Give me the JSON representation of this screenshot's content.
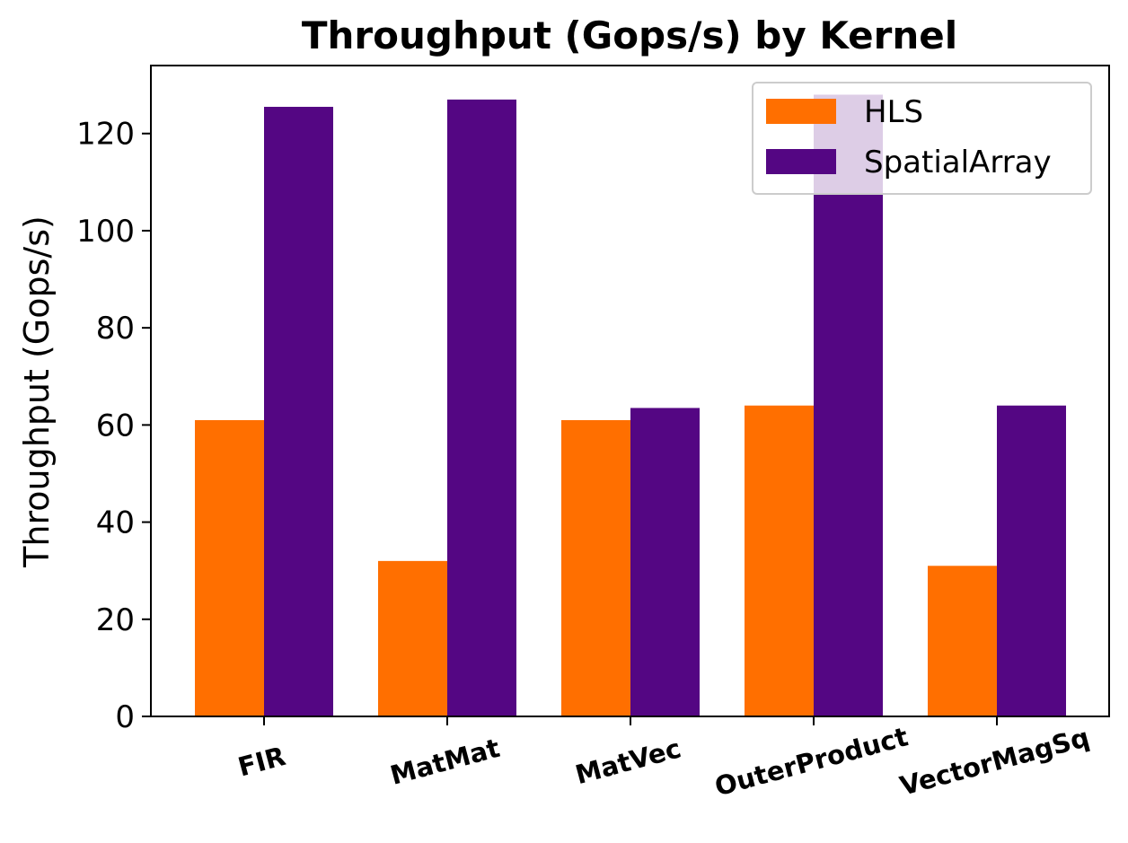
{
  "chart_data": {
    "type": "bar",
    "title": "Throughput (Gops/s) by Kernel",
    "xlabel": "",
    "ylabel": "Throughput (Gops/s)",
    "categories": [
      "FIR",
      "MatMat",
      "MatVec",
      "OuterProduct",
      "VectorMagSq"
    ],
    "series": [
      {
        "name": "HLS",
        "color": "#ff6f00",
        "values": [
          61,
          32,
          61,
          64,
          31
        ]
      },
      {
        "name": "SpatialArray",
        "color": "#540683",
        "values": [
          125.5,
          127,
          63.5,
          128,
          64
        ]
      }
    ],
    "ylim": [
      0,
      134
    ],
    "yticks": [
      0,
      20,
      40,
      60,
      80,
      100,
      120
    ],
    "grid": false,
    "legend_position": "top-right"
  }
}
